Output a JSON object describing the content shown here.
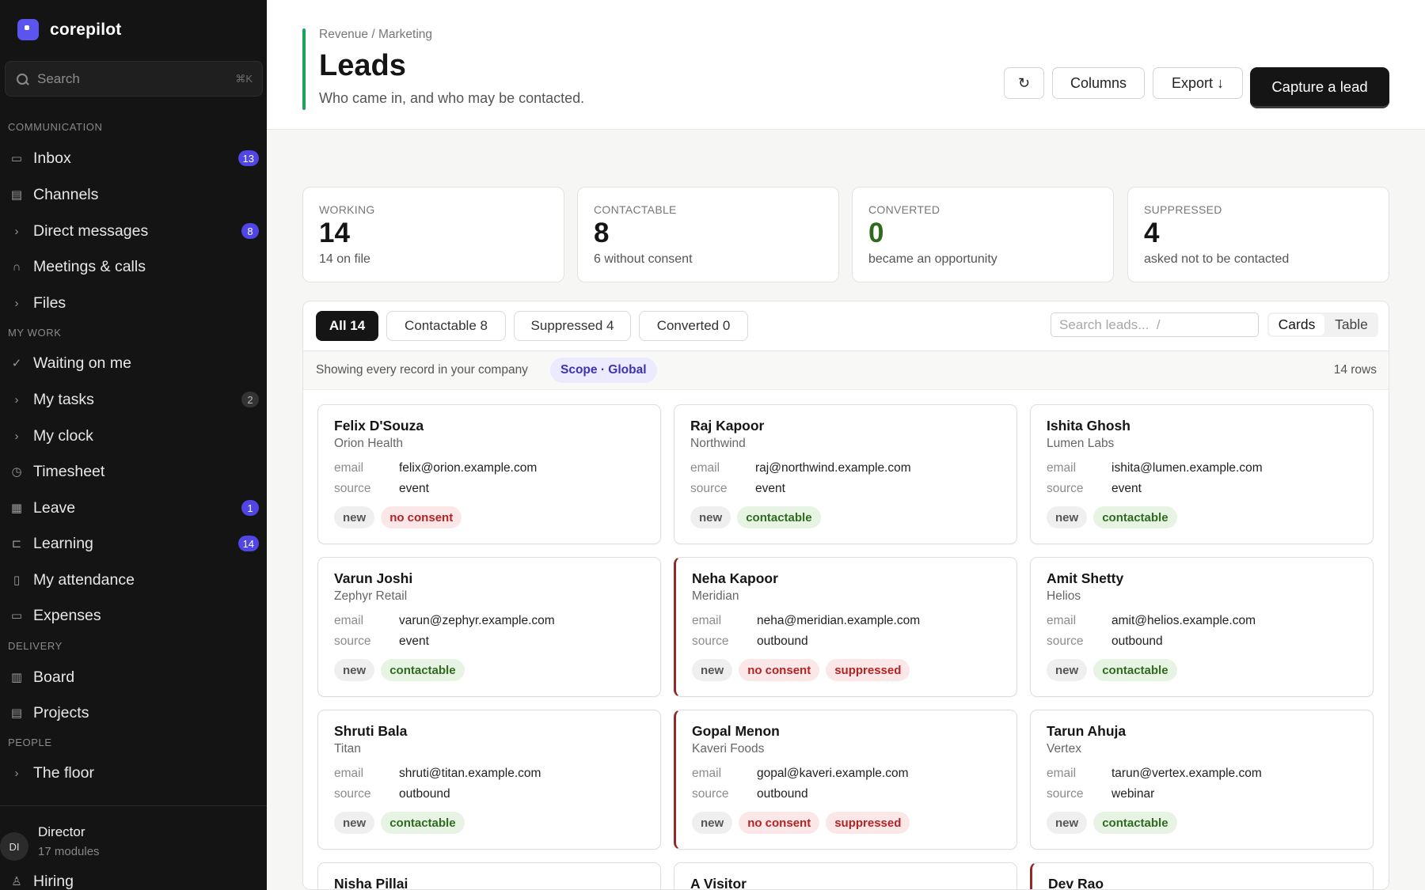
{
  "app": {
    "name": "corepilot"
  },
  "sidebar": {
    "search_placeholder": "Search",
    "search_shortcut": "⌘K",
    "sections": [
      "COMMUNICATION",
      "MY WORK",
      "DELIVERY",
      "PEOPLE"
    ],
    "items": [
      {
        "label": "Inbox",
        "icon": "inbox-icon",
        "badge": "13"
      },
      {
        "label": "Channels",
        "icon": "chat-icon"
      },
      {
        "label": "Direct messages",
        "icon": "chevron-right-icon",
        "badge": "8"
      },
      {
        "label": "Meetings & calls",
        "icon": "headset-icon"
      },
      {
        "label": "Files",
        "icon": "chevron-right-icon"
      },
      {
        "label": "Waiting on me",
        "icon": "check-icon"
      },
      {
        "label": "My tasks",
        "icon": "chevron-right-icon",
        "badge": "2"
      },
      {
        "label": "My clock",
        "icon": "chevron-right-icon"
      },
      {
        "label": "Timesheet",
        "icon": "clock-icon"
      },
      {
        "label": "Leave",
        "icon": "calendar-icon",
        "badge": "1"
      },
      {
        "label": "Learning",
        "icon": "book-icon",
        "badge": "14"
      },
      {
        "label": "My attendance",
        "icon": "phone-icon"
      },
      {
        "label": "Expenses",
        "icon": "receipt-icon"
      },
      {
        "label": "Board",
        "icon": "kanban-icon"
      },
      {
        "label": "Projects",
        "icon": "briefcase-icon"
      },
      {
        "label": "The floor",
        "icon": "chevron-right-icon"
      },
      {
        "label": "Hiring",
        "icon": "user-plus-icon"
      }
    ],
    "user": {
      "initials": "DI",
      "name": "Director",
      "sub": "17 modules"
    }
  },
  "header": {
    "breadcrumb": "Revenue / Marketing",
    "title": "Leads",
    "subtitle": "Who came in, and who may be contacted.",
    "refresh_icon": "↻",
    "columns_label": "Columns",
    "export_label": "Export ↓",
    "primary_label": "Capture a lead",
    "accent_color": "#1fa35c"
  },
  "kpis": [
    {
      "label": "WORKING",
      "value": "14",
      "sub": "14 on file"
    },
    {
      "label": "CONTACTABLE",
      "value": "8",
      "sub": "6 without consent"
    },
    {
      "label": "CONVERTED",
      "value": "0",
      "sub": "became an opportunity"
    },
    {
      "label": "SUPPRESSED",
      "value": "4",
      "sub": "asked not to be contacted"
    }
  ],
  "filters": {
    "tabs": [
      "All 14",
      "Contactable 8",
      "Suppressed 4",
      "Converted 0"
    ],
    "search_placeholder": "Search leads...  /",
    "views": [
      "Cards",
      "Table"
    ]
  },
  "scope": {
    "text": "Showing every record in your company",
    "chip": "Scope · Global",
    "rows": "14 rows"
  },
  "field_labels": {
    "email": "email",
    "source": "source"
  },
  "leads": [
    {
      "name": "Felix D'Souza",
      "company": "Orion Health",
      "email": "felix@orion.example.com",
      "source": "event",
      "tags": [
        "new",
        "no consent"
      ]
    },
    {
      "name": "Raj Kapoor",
      "company": "Northwind",
      "email": "raj@northwind.example.com",
      "source": "event",
      "tags": [
        "new",
        "contactable"
      ]
    },
    {
      "name": "Ishita Ghosh",
      "company": "Lumen Labs",
      "email": "ishita@lumen.example.com",
      "source": "event",
      "tags": [
        "new",
        "contactable"
      ]
    },
    {
      "name": "Varun Joshi",
      "company": "Zephyr Retail",
      "email": "varun@zephyr.example.com",
      "source": "event",
      "tags": [
        "new",
        "contactable"
      ]
    },
    {
      "name": "Neha Kapoor",
      "company": "Meridian",
      "email": "neha@meridian.example.com",
      "source": "outbound",
      "tags": [
        "new",
        "no consent",
        "suppressed"
      ]
    },
    {
      "name": "Amit Shetty",
      "company": "Helios",
      "email": "amit@helios.example.com",
      "source": "outbound",
      "tags": [
        "new",
        "contactable"
      ]
    },
    {
      "name": "Shruti Bala",
      "company": "Titan",
      "email": "shruti@titan.example.com",
      "source": "outbound",
      "tags": [
        "new",
        "contactable"
      ]
    },
    {
      "name": "Gopal Menon",
      "company": "Kaveri Foods",
      "email": "gopal@kaveri.example.com",
      "source": "outbound",
      "tags": [
        "new",
        "no consent",
        "suppressed"
      ]
    },
    {
      "name": "Tarun Ahuja",
      "company": "Vertex",
      "email": "tarun@vertex.example.com",
      "source": "webinar",
      "tags": [
        "new",
        "contactable"
      ]
    },
    {
      "name": "Nisha Pillai"
    },
    {
      "name": "A Visitor"
    },
    {
      "name": "Dev Rao"
    }
  ]
}
